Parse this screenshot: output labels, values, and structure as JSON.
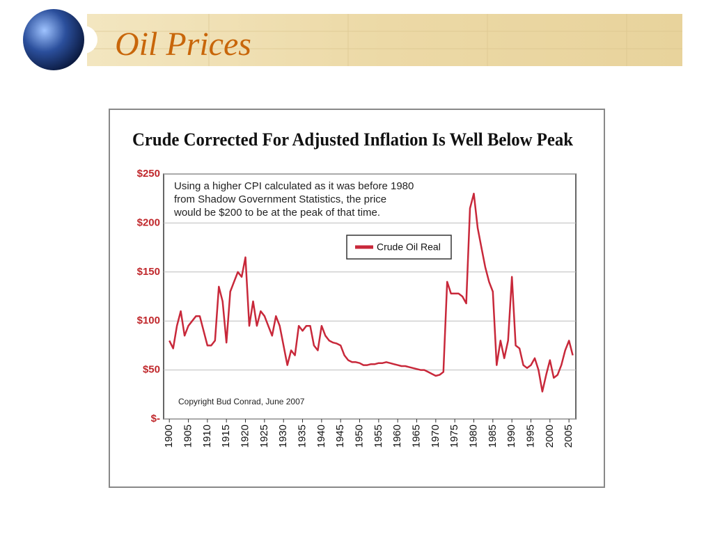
{
  "header": {
    "title": "Oil Prices"
  },
  "chart_data": {
    "type": "line",
    "title": "Crude Corrected For Adjusted Inflation Is Well Below Peak",
    "annotation": [
      "Using a higher CPI calculated as it was before 1980",
      "from Shadow Government Statistics, the price",
      "would be $200 to be at the peak of that time."
    ],
    "note": "Copyright Bud Conrad, June 2007",
    "x": [
      1900,
      1901,
      1902,
      1903,
      1904,
      1905,
      1906,
      1907,
      1908,
      1909,
      1910,
      1911,
      1912,
      1913,
      1914,
      1915,
      1916,
      1917,
      1918,
      1919,
      1920,
      1921,
      1922,
      1923,
      1924,
      1925,
      1926,
      1927,
      1928,
      1929,
      1930,
      1931,
      1932,
      1933,
      1934,
      1935,
      1936,
      1937,
      1938,
      1939,
      1940,
      1941,
      1942,
      1943,
      1944,
      1945,
      1946,
      1947,
      1948,
      1949,
      1950,
      1951,
      1952,
      1953,
      1954,
      1955,
      1956,
      1957,
      1958,
      1959,
      1960,
      1961,
      1962,
      1963,
      1964,
      1965,
      1966,
      1967,
      1968,
      1969,
      1970,
      1971,
      1972,
      1973,
      1974,
      1975,
      1976,
      1977,
      1978,
      1979,
      1980,
      1981,
      1982,
      1983,
      1984,
      1985,
      1986,
      1987,
      1988,
      1989,
      1990,
      1991,
      1992,
      1993,
      1994,
      1995,
      1996,
      1997,
      1998,
      1999,
      2000,
      2001,
      2002,
      2003,
      2004,
      2005,
      2006
    ],
    "series": [
      {
        "name": "Crude Oil Real",
        "color": "#c8283a",
        "values": [
          80,
          72,
          95,
          110,
          85,
          95,
          100,
          105,
          105,
          90,
          75,
          75,
          80,
          135,
          120,
          78,
          130,
          140,
          150,
          145,
          165,
          95,
          120,
          95,
          110,
          105,
          95,
          85,
          105,
          95,
          75,
          55,
          70,
          65,
          95,
          90,
          95,
          95,
          75,
          70,
          95,
          85,
          80,
          78,
          77,
          75,
          65,
          60,
          58,
          58,
          57,
          55,
          55,
          56,
          56,
          57,
          57,
          58,
          57,
          56,
          55,
          54,
          54,
          53,
          52,
          51,
          50,
          50,
          48,
          46,
          44,
          45,
          48,
          140,
          128,
          128,
          128,
          125,
          118,
          215,
          230,
          195,
          175,
          155,
          140,
          130,
          55,
          80,
          62,
          80,
          145,
          75,
          72,
          55,
          52,
          55,
          62,
          50,
          28,
          45,
          60,
          42,
          45,
          55,
          70,
          80,
          65
        ]
      }
    ],
    "xlim": [
      1898.5,
      2006.8
    ],
    "xticks": [
      1900,
      1905,
      1910,
      1915,
      1920,
      1925,
      1930,
      1935,
      1940,
      1945,
      1950,
      1955,
      1960,
      1965,
      1970,
      1975,
      1980,
      1985,
      1990,
      1995,
      2000,
      2005
    ],
    "ylim": [
      0,
      250
    ],
    "yticks": [
      {
        "value": 0,
        "label": "$-"
      },
      {
        "value": 50,
        "label": "$50"
      },
      {
        "value": 100,
        "label": "$100"
      },
      {
        "value": 150,
        "label": "$150"
      },
      {
        "value": 200,
        "label": "$200"
      },
      {
        "value": 250,
        "label": "$250"
      }
    ],
    "grid": true
  }
}
